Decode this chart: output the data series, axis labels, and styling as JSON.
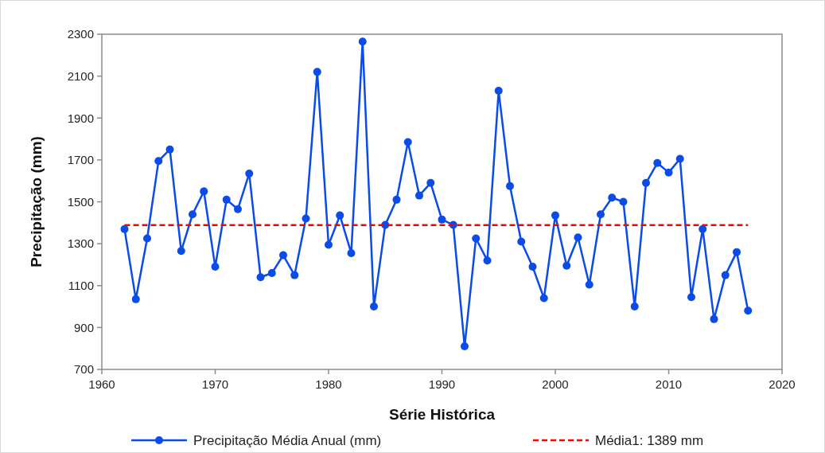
{
  "chart_data": {
    "type": "line",
    "xlabel": "Série Histórica",
    "ylabel": "Precipitação (mm)",
    "xlim": [
      1960,
      2020
    ],
    "xticks": [
      1960,
      1970,
      1980,
      1990,
      2000,
      2010,
      2020
    ],
    "ylim": [
      700,
      2300
    ],
    "yticks": [
      700,
      900,
      1100,
      1300,
      1500,
      1700,
      1900,
      2100,
      2300
    ],
    "grid": false,
    "legend": "bottom",
    "series": [
      {
        "name": "Precipitação Média Anual (mm)",
        "color": "#0b4be8",
        "marker": "circle",
        "line_style": "solid",
        "x": [
          1962,
          1963,
          1964,
          1965,
          1966,
          1967,
          1968,
          1969,
          1970,
          1971,
          1972,
          1973,
          1974,
          1975,
          1976,
          1977,
          1978,
          1979,
          1980,
          1981,
          1982,
          1983,
          1984,
          1985,
          1986,
          1987,
          1988,
          1989,
          1990,
          1991,
          1992,
          1993,
          1994,
          1995,
          1996,
          1997,
          1998,
          1999,
          2000,
          2001,
          2002,
          2003,
          2004,
          2005,
          2006,
          2007,
          2008,
          2009,
          2010,
          2011,
          2012,
          2013,
          2014,
          2015,
          2016,
          2017
        ],
        "values": [
          1370,
          1035,
          1325,
          1695,
          1750,
          1265,
          1440,
          1550,
          1190,
          1510,
          1465,
          1635,
          1140,
          1160,
          1245,
          1150,
          1420,
          2120,
          1295,
          1435,
          1255,
          2265,
          1000,
          1390,
          1510,
          1785,
          1530,
          1590,
          1415,
          1390,
          810,
          1325,
          1220,
          2030,
          1575,
          1310,
          1190,
          1040,
          1435,
          1195,
          1330,
          1105,
          1440,
          1520,
          1500,
          1000,
          1590,
          1685,
          1640,
          1705,
          1045,
          1370,
          940,
          1150,
          1260,
          980
        ]
      },
      {
        "name": "Média1: 1389 mm",
        "color": "#ff0000",
        "marker": "none",
        "line_style": "dashed",
        "x": [
          1962,
          2017
        ],
        "values": [
          1389,
          1389
        ]
      }
    ]
  }
}
